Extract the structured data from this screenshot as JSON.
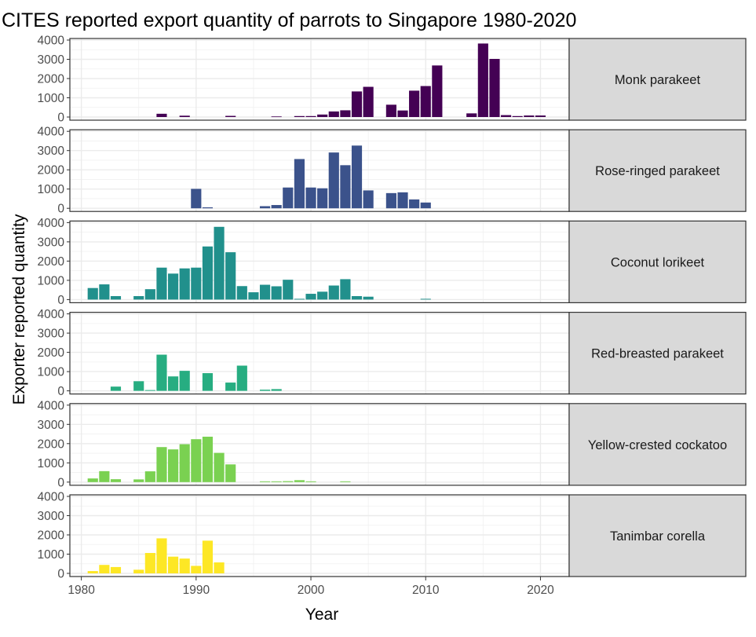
{
  "chart_data": {
    "type": "bar",
    "title": "CITES reported export quantity of parrots to Singapore 1980-2020",
    "xlabel": "Year",
    "ylabel": "Exporter reported quantity",
    "xlim": [
      1979,
      2022.5
    ],
    "ylim": [
      0,
      4000
    ],
    "xticks": [
      1980,
      1990,
      2000,
      2010,
      2020
    ],
    "yticks": [
      0,
      1000,
      2000,
      3000,
      4000
    ],
    "grid": true,
    "legend": "none",
    "facets": [
      {
        "name": "Monk parakeet",
        "color": "#440154",
        "x": [
          1987,
          1989,
          1993,
          1997,
          1999,
          2000,
          2001,
          2002,
          2003,
          2004,
          2005,
          2007,
          2008,
          2009,
          2010,
          2011,
          2012,
          2014,
          2015,
          2016,
          2017,
          2018,
          2019,
          2020
        ],
        "values": [
          170,
          70,
          60,
          30,
          50,
          50,
          130,
          290,
          350,
          1330,
          1570,
          640,
          340,
          1370,
          1610,
          2680,
          0,
          190,
          3820,
          3020,
          100,
          50,
          80,
          80
        ]
      },
      {
        "name": "Rose-ringed parakeet",
        "color": "#3b528b",
        "x": [
          1990,
          1991,
          1996,
          1997,
          1998,
          1999,
          2000,
          2001,
          2002,
          2003,
          2004,
          2005,
          2007,
          2008,
          2009,
          2010
        ],
        "values": [
          1010,
          50,
          110,
          170,
          1080,
          2560,
          1080,
          1040,
          2900,
          2240,
          3260,
          930,
          790,
          830,
          460,
          300
        ]
      },
      {
        "name": "Coconut lorikeet",
        "color": "#21908c",
        "x": [
          1981,
          1982,
          1983,
          1985,
          1986,
          1987,
          1988,
          1989,
          1990,
          1991,
          1992,
          1993,
          1994,
          1995,
          1996,
          1997,
          1998,
          1999,
          2000,
          2001,
          2002,
          2003,
          2004,
          2005,
          2010
        ],
        "values": [
          600,
          790,
          180,
          180,
          540,
          1660,
          1350,
          1620,
          1660,
          2760,
          3780,
          2460,
          700,
          380,
          770,
          690,
          1030,
          40,
          300,
          410,
          730,
          1060,
          180,
          150,
          40
        ]
      },
      {
        "name": "Red-breasted parakeet",
        "color": "#27ad81",
        "x": [
          1983,
          1985,
          1986,
          1987,
          1988,
          1989,
          1991,
          1993,
          1994,
          1996,
          1997
        ],
        "values": [
          220,
          500,
          40,
          1880,
          750,
          1040,
          920,
          430,
          1310,
          60,
          90
        ]
      },
      {
        "name": "Yellow-crested cockatoo",
        "color": "#7ad151",
        "x": [
          1981,
          1982,
          1983,
          1985,
          1986,
          1987,
          1988,
          1989,
          1990,
          1991,
          1992,
          1993,
          1996,
          1997,
          1998,
          1999,
          2000,
          2003
        ],
        "values": [
          190,
          570,
          150,
          140,
          560,
          1820,
          1700,
          1970,
          2230,
          2360,
          1520,
          920,
          40,
          40,
          50,
          100,
          40,
          40
        ]
      },
      {
        "name": "Tanimbar corella",
        "color": "#fde725",
        "x": [
          1981,
          1982,
          1983,
          1985,
          1986,
          1987,
          1988,
          1989,
          1990,
          1991,
          1992
        ],
        "values": [
          120,
          440,
          330,
          190,
          1060,
          1820,
          870,
          770,
          390,
          1700,
          570
        ]
      }
    ]
  }
}
